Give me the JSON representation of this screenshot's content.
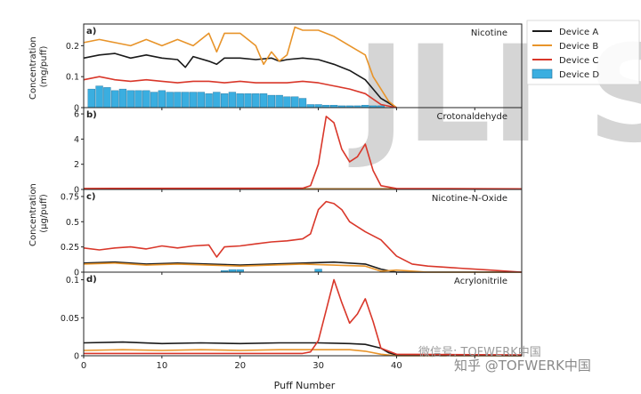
{
  "figure": {
    "xlabel": "Puff Number",
    "x_ticks": [
      "0",
      "10",
      "20",
      "30",
      "40"
    ],
    "ylabel_top": "Concentration\n(mg/puff)",
    "ylabel_bottom": "Concentration\n(μg/puff)",
    "background_text": "JLI Sci",
    "watermark": "微信号: TOFWERK中国",
    "watermark2": "知乎 @TOFWERK中国"
  },
  "legend": {
    "placement": "top-right, outside",
    "items": [
      {
        "name": "Device A",
        "color": "#1a1a1a",
        "kind": "line"
      },
      {
        "name": "Device B",
        "color": "#e8942a",
        "kind": "line"
      },
      {
        "name": "Device C",
        "color": "#d9372a",
        "kind": "line"
      },
      {
        "name": "Device D",
        "color": "#3aaee0",
        "kind": "bar"
      }
    ]
  },
  "chart_data": [
    {
      "panel": "a)",
      "type": "line",
      "title": "Nicotine",
      "xlim": [
        0,
        56
      ],
      "ylim": [
        0,
        0.27
      ],
      "yticks": [
        "0",
        "0.1",
        "0.2"
      ],
      "series": [
        {
          "name": "Device A",
          "color": "#1a1a1a",
          "x": [
            0,
            2,
            4,
            6,
            8,
            10,
            12,
            13,
            14,
            16,
            17,
            18,
            20,
            22,
            24,
            25,
            26,
            28,
            30,
            32,
            34,
            36,
            37,
            38,
            40
          ],
          "y": [
            0.16,
            0.17,
            0.175,
            0.16,
            0.17,
            0.16,
            0.155,
            0.13,
            0.165,
            0.15,
            0.14,
            0.16,
            0.16,
            0.155,
            0.16,
            0.15,
            0.155,
            0.16,
            0.155,
            0.14,
            0.12,
            0.09,
            0.06,
            0.03,
            0.0
          ]
        },
        {
          "name": "Device B",
          "color": "#e8942a",
          "x": [
            0,
            2,
            4,
            6,
            8,
            10,
            12,
            14,
            16,
            17,
            18,
            20,
            22,
            23,
            24,
            25,
            26,
            27,
            28,
            30,
            32,
            34,
            36,
            37,
            38,
            39,
            40
          ],
          "y": [
            0.21,
            0.22,
            0.21,
            0.2,
            0.22,
            0.2,
            0.22,
            0.2,
            0.24,
            0.18,
            0.24,
            0.24,
            0.2,
            0.14,
            0.18,
            0.15,
            0.17,
            0.26,
            0.25,
            0.25,
            0.23,
            0.2,
            0.17,
            0.1,
            0.06,
            0.02,
            0.0
          ]
        },
        {
          "name": "Device C",
          "color": "#d9372a",
          "x": [
            0,
            2,
            4,
            6,
            8,
            10,
            12,
            14,
            16,
            18,
            20,
            22,
            24,
            26,
            28,
            30,
            32,
            34,
            36,
            38,
            40
          ],
          "y": [
            0.09,
            0.1,
            0.09,
            0.085,
            0.09,
            0.085,
            0.08,
            0.085,
            0.085,
            0.08,
            0.085,
            0.08,
            0.08,
            0.08,
            0.085,
            0.08,
            0.07,
            0.06,
            0.045,
            0.01,
            0.0
          ]
        }
      ],
      "bars": {
        "name": "Device D",
        "color": "#3aaee0",
        "x": [
          1,
          2,
          3,
          4,
          5,
          6,
          7,
          8,
          9,
          10,
          11,
          12,
          13,
          14,
          15,
          16,
          17,
          18,
          19,
          20,
          21,
          22,
          23,
          24,
          25,
          26,
          27,
          28,
          29,
          30,
          31,
          32,
          33,
          34,
          35,
          36,
          37,
          38
        ],
        "values": [
          0.06,
          0.07,
          0.065,
          0.055,
          0.06,
          0.055,
          0.055,
          0.055,
          0.05,
          0.055,
          0.05,
          0.05,
          0.05,
          0.05,
          0.05,
          0.045,
          0.05,
          0.045,
          0.05,
          0.045,
          0.045,
          0.045,
          0.045,
          0.04,
          0.04,
          0.035,
          0.035,
          0.03,
          0.01,
          0.01,
          0.008,
          0.008,
          0.006,
          0.006,
          0.006,
          0.008,
          0.006,
          0.006
        ]
      }
    },
    {
      "panel": "b)",
      "type": "line",
      "title": "Crotonaldehyde",
      "xlim": [
        0,
        56
      ],
      "ylim": [
        0,
        6.5
      ],
      "yticks": [
        "0",
        "2",
        "4",
        "6"
      ],
      "series": [
        {
          "name": "Device A",
          "color": "#1a1a1a",
          "x": [
            0,
            56
          ],
          "y": [
            0.05,
            0.05
          ]
        },
        {
          "name": "Device B",
          "color": "#e8942a",
          "x": [
            0,
            56
          ],
          "y": [
            0.03,
            0.03
          ]
        },
        {
          "name": "Device C",
          "color": "#d9372a",
          "x": [
            0,
            28,
            29,
            30,
            31,
            32,
            33,
            34,
            35,
            36,
            37,
            38,
            40,
            56
          ],
          "y": [
            0.08,
            0.1,
            0.3,
            2.0,
            5.8,
            5.3,
            3.2,
            2.2,
            2.6,
            3.6,
            1.5,
            0.3,
            0.08,
            0.05
          ]
        }
      ]
    },
    {
      "panel": "c)",
      "type": "line",
      "title": "Nicotine-N-Oxide",
      "xlim": [
        0,
        56
      ],
      "ylim": [
        0,
        0.82
      ],
      "yticks": [
        "0",
        "0.25",
        "0.5",
        "0.75"
      ],
      "series": [
        {
          "name": "Device A",
          "color": "#1a1a1a",
          "x": [
            0,
            4,
            8,
            12,
            16,
            20,
            24,
            28,
            32,
            36,
            38,
            40,
            44,
            48,
            52,
            56
          ],
          "y": [
            0.09,
            0.1,
            0.08,
            0.09,
            0.08,
            0.07,
            0.08,
            0.09,
            0.1,
            0.08,
            0.03,
            0.0,
            0.0,
            0.0,
            0.0,
            0.0
          ]
        },
        {
          "name": "Device B",
          "color": "#e8942a",
          "x": [
            0,
            4,
            8,
            12,
            16,
            20,
            24,
            28,
            32,
            36,
            38,
            40,
            44,
            48,
            52,
            56
          ],
          "y": [
            0.08,
            0.09,
            0.07,
            0.08,
            0.07,
            0.06,
            0.07,
            0.08,
            0.07,
            0.06,
            0.01,
            0.02,
            0.0,
            0.0,
            0.0,
            0.0
          ]
        },
        {
          "name": "Device C",
          "color": "#d9372a",
          "x": [
            0,
            2,
            4,
            6,
            8,
            10,
            12,
            14,
            16,
            17,
            18,
            20,
            22,
            24,
            26,
            28,
            29,
            30,
            31,
            32,
            33,
            34,
            36,
            38,
            40,
            42,
            44,
            46,
            48,
            52,
            56
          ],
          "y": [
            0.24,
            0.22,
            0.24,
            0.25,
            0.23,
            0.26,
            0.24,
            0.26,
            0.27,
            0.15,
            0.25,
            0.26,
            0.28,
            0.3,
            0.31,
            0.33,
            0.38,
            0.62,
            0.7,
            0.68,
            0.62,
            0.5,
            0.4,
            0.32,
            0.16,
            0.08,
            0.06,
            0.05,
            0.04,
            0.02,
            0.0
          ]
        }
      ],
      "bars": {
        "name": "Device D",
        "color": "#3aaee0",
        "x": [
          18,
          19,
          20,
          30
        ],
        "values": [
          0.015,
          0.025,
          0.025,
          0.03
        ]
      }
    },
    {
      "panel": "d)",
      "type": "line",
      "title": "Acrylonitrile",
      "xlim": [
        0,
        56
      ],
      "ylim": [
        0,
        0.11
      ],
      "yticks": [
        "0",
        "0.05",
        "0.1"
      ],
      "series": [
        {
          "name": "Device A",
          "color": "#1a1a1a",
          "x": [
            0,
            5,
            10,
            15,
            20,
            25,
            30,
            34,
            36,
            38,
            39,
            40,
            56
          ],
          "y": [
            0.017,
            0.018,
            0.016,
            0.017,
            0.016,
            0.017,
            0.017,
            0.016,
            0.015,
            0.01,
            0.004,
            0.001,
            0.0
          ]
        },
        {
          "name": "Device B",
          "color": "#e8942a",
          "x": [
            0,
            5,
            10,
            15,
            20,
            25,
            30,
            34,
            36,
            38,
            40,
            56
          ],
          "y": [
            0.007,
            0.008,
            0.007,
            0.008,
            0.007,
            0.008,
            0.008,
            0.008,
            0.006,
            0.002,
            0.0,
            0.0
          ]
        },
        {
          "name": "Device C",
          "color": "#d9372a",
          "x": [
            0,
            28,
            29,
            30,
            31,
            32,
            33,
            34,
            35,
            36,
            37,
            38,
            40,
            56
          ],
          "y": [
            0.003,
            0.003,
            0.005,
            0.02,
            0.06,
            0.1,
            0.07,
            0.043,
            0.055,
            0.075,
            0.045,
            0.01,
            0.002,
            0.001
          ]
        }
      ]
    }
  ]
}
